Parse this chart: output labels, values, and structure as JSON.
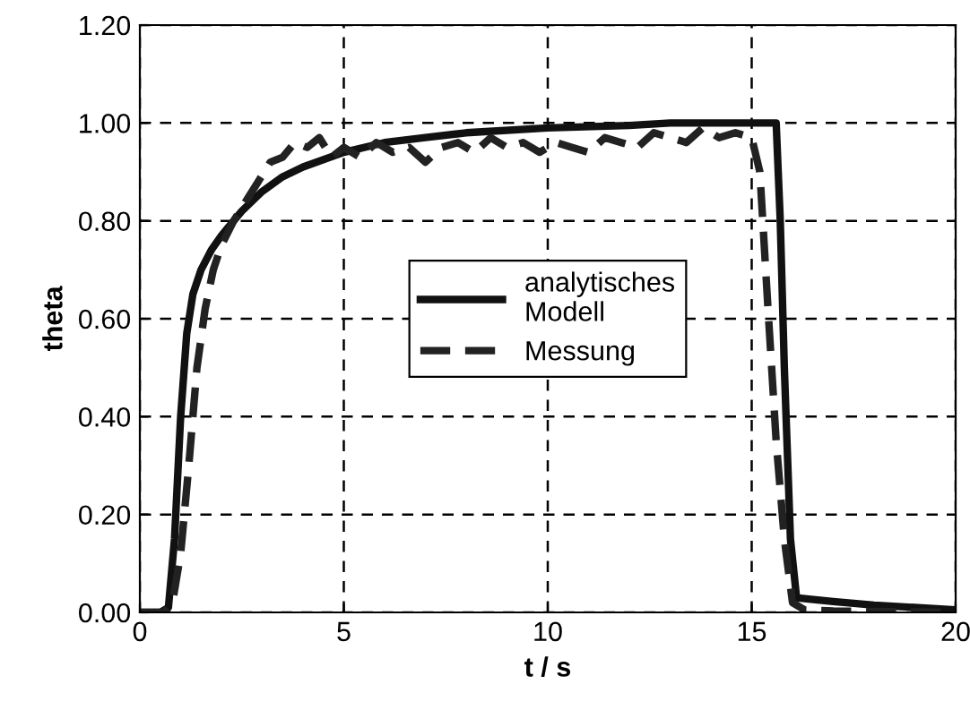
{
  "chart_data": {
    "type": "line",
    "xlabel": "t / s",
    "ylabel": "theta",
    "xlim": [
      0,
      20
    ],
    "xticks": [
      0,
      5,
      10,
      15,
      20
    ],
    "ylim": [
      0,
      1.2
    ],
    "yticks": [
      {
        "value": 0,
        "label": "0.00"
      },
      {
        "value": 0.2,
        "label": "0.20"
      },
      {
        "value": 0.4,
        "label": "0.40"
      },
      {
        "value": 0.6,
        "label": "0.60"
      },
      {
        "value": 0.8,
        "label": "0.80"
      },
      {
        "value": 1.0,
        "label": "1.00"
      },
      {
        "value": 1.2,
        "label": "1.20"
      }
    ],
    "grid": true,
    "legend": "center",
    "series": [
      {
        "name": "analytisches\nModell",
        "color": "#111111",
        "line_style": "solid",
        "x": [
          0,
          0.5,
          0.7,
          0.85,
          1.0,
          1.15,
          1.3,
          1.5,
          1.75,
          2.0,
          2.5,
          3.0,
          3.5,
          4.0,
          5.0,
          6.0,
          7.0,
          8.0,
          10.0,
          12.0,
          13.0,
          15.0,
          15.6,
          15.7,
          15.8,
          15.95,
          16.1,
          16.3,
          17.0,
          18.0,
          20.0
        ],
        "values": [
          0.0,
          0.0,
          0.01,
          0.15,
          0.4,
          0.57,
          0.65,
          0.7,
          0.74,
          0.77,
          0.82,
          0.86,
          0.89,
          0.91,
          0.94,
          0.96,
          0.97,
          0.98,
          0.99,
          0.995,
          1.0,
          1.0,
          1.0,
          0.8,
          0.5,
          0.15,
          0.03,
          0.028,
          0.022,
          0.015,
          0.005
        ]
      },
      {
        "name": "Messung",
        "color": "#222222",
        "line_style": "dashed",
        "x": [
          0,
          0.6,
          0.8,
          1.0,
          1.2,
          1.4,
          1.6,
          1.8,
          2.0,
          2.3,
          2.6,
          2.9,
          3.2,
          3.5,
          3.8,
          4.1,
          4.4,
          4.7,
          5.0,
          5.4,
          5.8,
          6.2,
          6.6,
          7.0,
          7.4,
          7.8,
          8.2,
          8.6,
          9.0,
          9.4,
          9.8,
          10.2,
          10.6,
          11.0,
          11.4,
          11.8,
          12.2,
          12.6,
          13.0,
          13.4,
          13.8,
          14.2,
          14.6,
          15.0,
          15.2,
          15.4,
          15.6,
          15.8,
          16.0,
          16.3,
          17.0,
          18.0,
          20.0
        ],
        "values": [
          0.0,
          0.0,
          0.02,
          0.12,
          0.3,
          0.5,
          0.62,
          0.7,
          0.75,
          0.8,
          0.84,
          0.88,
          0.92,
          0.93,
          0.96,
          0.95,
          0.97,
          0.93,
          0.95,
          0.93,
          0.96,
          0.94,
          0.95,
          0.92,
          0.95,
          0.96,
          0.94,
          0.97,
          0.95,
          0.96,
          0.94,
          0.96,
          0.95,
          0.94,
          0.97,
          0.96,
          0.95,
          0.98,
          0.97,
          0.96,
          0.99,
          0.97,
          0.98,
          0.97,
          0.9,
          0.62,
          0.35,
          0.15,
          0.02,
          0.005,
          0.003,
          0.002,
          0.0
        ]
      }
    ]
  }
}
